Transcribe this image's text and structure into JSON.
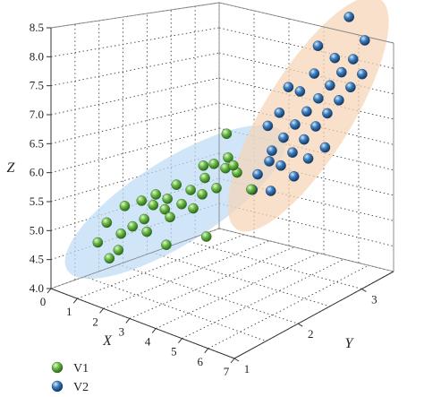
{
  "chart_data": {
    "type": "scatter3d",
    "title": "",
    "xlabel": "X",
    "ylabel": "Y",
    "zlabel": "Z",
    "xlim": [
      0,
      7
    ],
    "ylim": [
      1,
      3.5
    ],
    "zlim": [
      4.0,
      8.5
    ],
    "x_ticks": [
      "0",
      "1",
      "2",
      "3",
      "4",
      "5",
      "6",
      "7"
    ],
    "y_ticks": [
      "1",
      "2",
      "3"
    ],
    "z_ticks": [
      "4.0",
      "4.5",
      "5.0",
      "5.5",
      "6.0",
      "6.5",
      "7.0",
      "7.5",
      "8.0",
      "8.5"
    ],
    "grid": true,
    "legend_position": "bottom-left",
    "colors": {
      "V1": "#5fae3e",
      "V2": "#2f6fae",
      "V1_ellipse": "#bcdcf5",
      "V2_ellipse": "#f6d3b5"
    },
    "series": [
      {
        "name": "V1",
        "points": [
          [
            1.3,
            1.2,
            4.9
          ],
          [
            1.4,
            1.3,
            5.2
          ],
          [
            1.5,
            1.3,
            4.6
          ],
          [
            1.6,
            1.4,
            4.7
          ],
          [
            1.7,
            1.4,
            5.0
          ],
          [
            1.6,
            1.5,
            5.4
          ],
          [
            1.9,
            1.5,
            5.1
          ],
          [
            2.0,
            1.6,
            5.5
          ],
          [
            2.1,
            1.6,
            5.2
          ],
          [
            2.2,
            1.7,
            5.4
          ],
          [
            2.3,
            1.7,
            5.6
          ],
          [
            2.4,
            1.8,
            5.3
          ],
          [
            2.5,
            1.8,
            5.5
          ],
          [
            2.6,
            1.9,
            5.7
          ],
          [
            2.6,
            1.8,
            5.2
          ],
          [
            2.8,
            1.9,
            5.4
          ],
          [
            2.9,
            2.0,
            5.6
          ],
          [
            3.0,
            2.0,
            5.3
          ],
          [
            3.1,
            2.1,
            5.5
          ],
          [
            3.2,
            2.1,
            5.8
          ],
          [
            3.3,
            2.2,
            6.0
          ],
          [
            3.4,
            2.2,
            5.6
          ],
          [
            3.5,
            2.3,
            5.9
          ],
          [
            3.6,
            2.3,
            6.1
          ],
          [
            3.7,
            2.4,
            5.8
          ],
          [
            2.7,
            1.7,
            4.8
          ],
          [
            3.5,
            2.0,
            4.9
          ],
          [
            2.2,
            1.6,
            5.0
          ],
          [
            3.3,
            2.4,
            6.4
          ],
          [
            4.0,
            2.5,
            5.5
          ],
          [
            3.8,
            2.3,
            6.0
          ],
          [
            2.9,
            2.2,
            5.9
          ]
        ]
      },
      {
        "name": "V2",
        "points": [
          [
            3.8,
            2.6,
            5.4
          ],
          [
            4.0,
            2.6,
            5.7
          ],
          [
            4.2,
            2.7,
            5.9
          ],
          [
            4.3,
            2.7,
            6.1
          ],
          [
            4.4,
            2.8,
            5.8
          ],
          [
            4.5,
            2.8,
            6.3
          ],
          [
            4.6,
            2.9,
            6.0
          ],
          [
            4.7,
            2.9,
            6.5
          ],
          [
            4.8,
            3.0,
            6.2
          ],
          [
            4.9,
            3.0,
            6.7
          ],
          [
            5.0,
            3.1,
            6.4
          ],
          [
            5.1,
            3.1,
            6.9
          ],
          [
            5.2,
            3.2,
            6.6
          ],
          [
            5.3,
            3.2,
            7.1
          ],
          [
            5.4,
            3.3,
            6.8
          ],
          [
            5.5,
            3.3,
            7.3
          ],
          [
            5.6,
            3.4,
            7.0
          ],
          [
            5.7,
            3.4,
            7.5
          ],
          [
            5.8,
            3.5,
            7.2
          ],
          [
            5.9,
            3.5,
            7.8
          ],
          [
            4.1,
            2.9,
            6.6
          ],
          [
            4.4,
            3.1,
            6.9
          ],
          [
            4.7,
            3.2,
            7.2
          ],
          [
            5.0,
            3.4,
            7.4
          ],
          [
            5.3,
            3.5,
            8.1
          ],
          [
            4.5,
            2.6,
            5.5
          ],
          [
            4.9,
            2.8,
            5.7
          ],
          [
            4.2,
            3.0,
            7.0
          ],
          [
            4.6,
            3.3,
            7.6
          ],
          [
            5.2,
            2.9,
            6.0
          ],
          [
            3.9,
            2.8,
            6.4
          ],
          [
            5.6,
            3.0,
            6.2
          ]
        ]
      }
    ]
  }
}
